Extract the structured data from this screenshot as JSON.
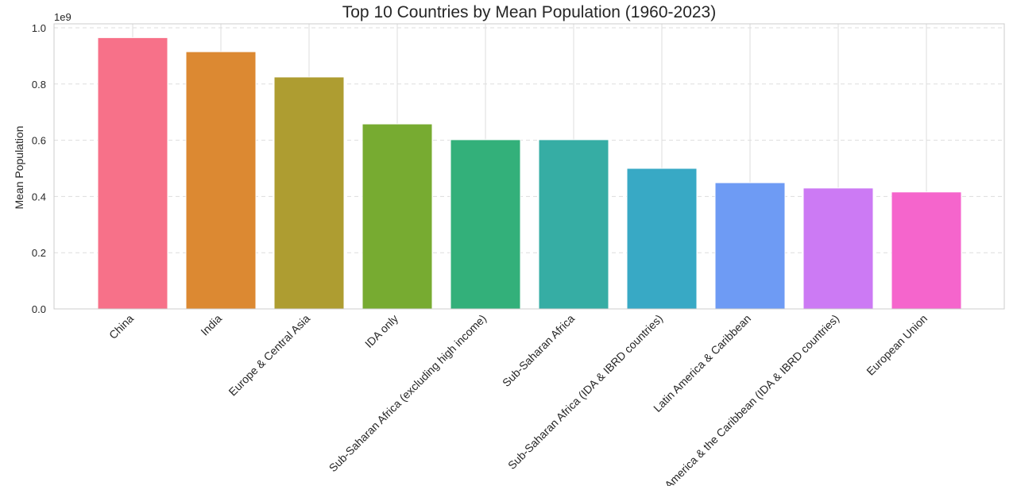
{
  "chart_data": {
    "type": "bar",
    "title": "Top 10 Countries by Mean Population (1960-2023)",
    "xlabel": "",
    "ylabel": "Mean Population",
    "offset_label": "1e9",
    "categories": [
      "China",
      "India",
      "Europe & Central Asia",
      "IDA only",
      "Sub-Saharan Africa (excluding high income)",
      "Sub-Saharan Africa",
      "Sub-Saharan Africa (IDA & IBRD countries)",
      "Latin America & Caribbean",
      "Latin America & the Caribbean (IDA & IBRD countries)",
      "European Union"
    ],
    "values": [
      0.965,
      0.915,
      0.825,
      0.658,
      0.602,
      0.602,
      0.5,
      0.449,
      0.43,
      0.416
    ],
    "colors": [
      "#f77189",
      "#dc8932",
      "#ae9d31",
      "#77ab31",
      "#33b07a",
      "#36ada4",
      "#38a9c5",
      "#6e9bf4",
      "#cc7af4",
      "#f565cc"
    ],
    "yticks": [
      "0.0",
      "0.2",
      "0.4",
      "0.6",
      "0.8",
      "1.0"
    ],
    "ylim": [
      0,
      1.0
    ],
    "grid": "y-dashed, x-solid",
    "legend": "none"
  }
}
